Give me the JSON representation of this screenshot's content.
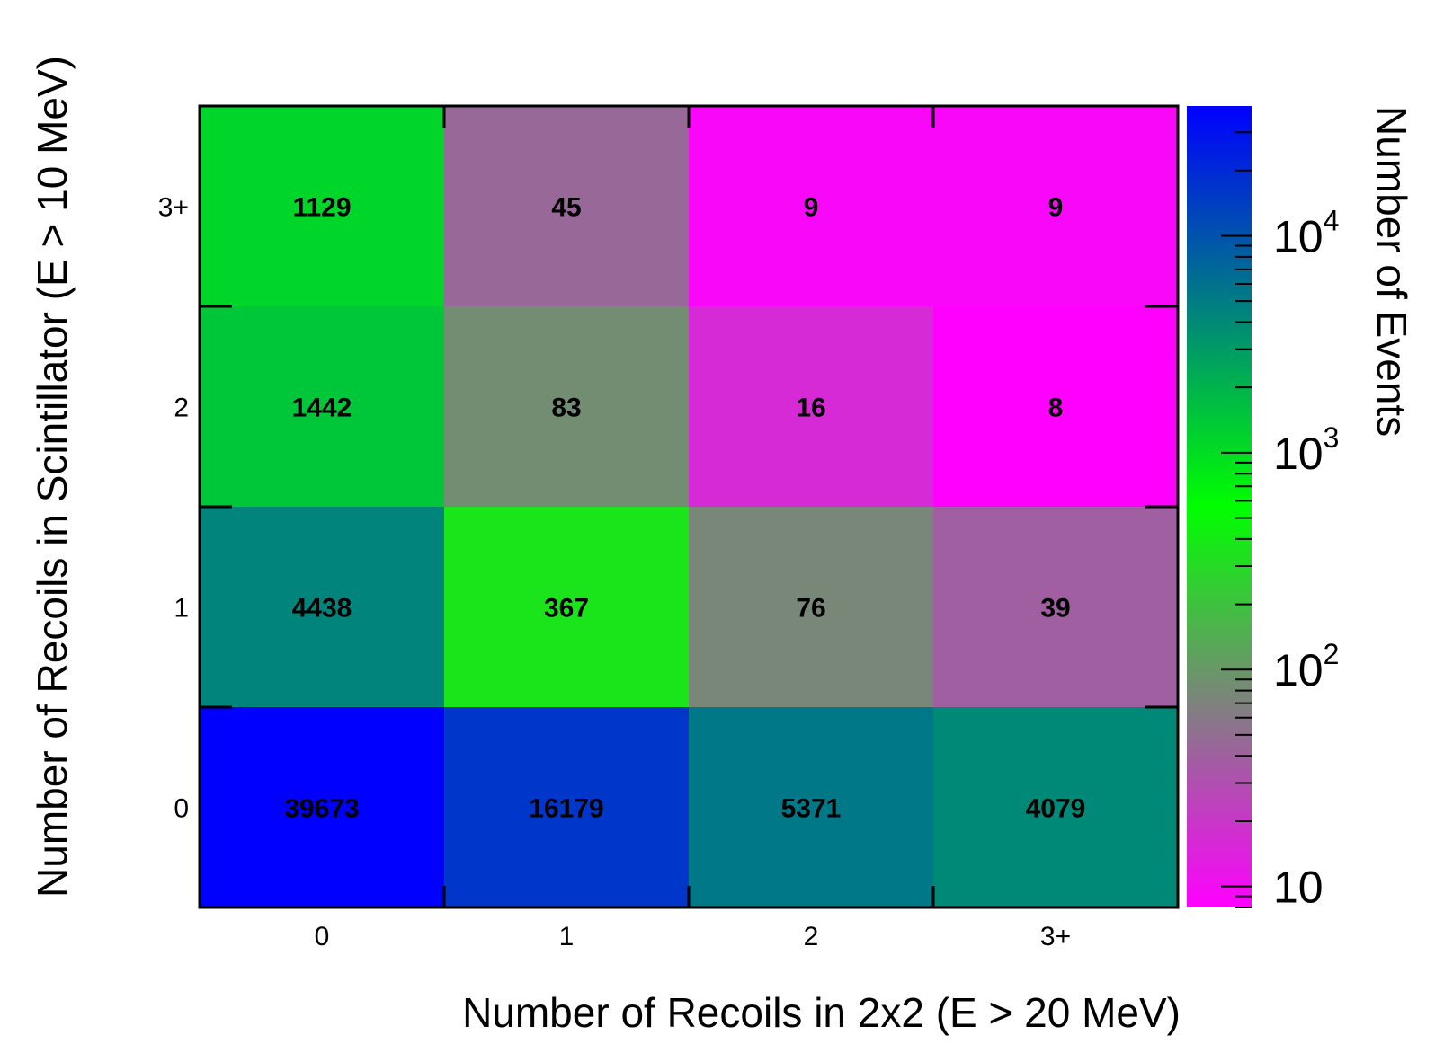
{
  "chart_data": {
    "type": "heatmap",
    "xlabel": "Number of Recoils in 2x2 (E > 20 MeV)",
    "ylabel": "Number of Recoils in Scintillator (E > 10 MeV)",
    "x_categories": [
      "0",
      "1",
      "2",
      "3+"
    ],
    "y_categories": [
      "0",
      "1",
      "2",
      "3+"
    ],
    "values": [
      [
        39673,
        16179,
        5371,
        4079
      ],
      [
        4438,
        367,
        76,
        39
      ],
      [
        1442,
        83,
        16,
        8
      ],
      [
        1129,
        45,
        9,
        9
      ]
    ],
    "values_layout": "rows indexed by y category (bottom to top), columns by x category",
    "colorbar": {
      "label": "Number of Events",
      "scale": "log",
      "range": [
        8,
        39673
      ],
      "tick_labels": [
        {
          "base": "10",
          "exp": "",
          "value": 10
        },
        {
          "base": "10",
          "exp": "2",
          "value": 100
        },
        {
          "base": "10",
          "exp": "3",
          "value": 1000
        },
        {
          "base": "10",
          "exp": "4",
          "value": 10000
        }
      ],
      "colors": [
        "#ff00ff",
        "#808080",
        "#00ff00",
        "#008080",
        "#0000ff"
      ]
    }
  }
}
